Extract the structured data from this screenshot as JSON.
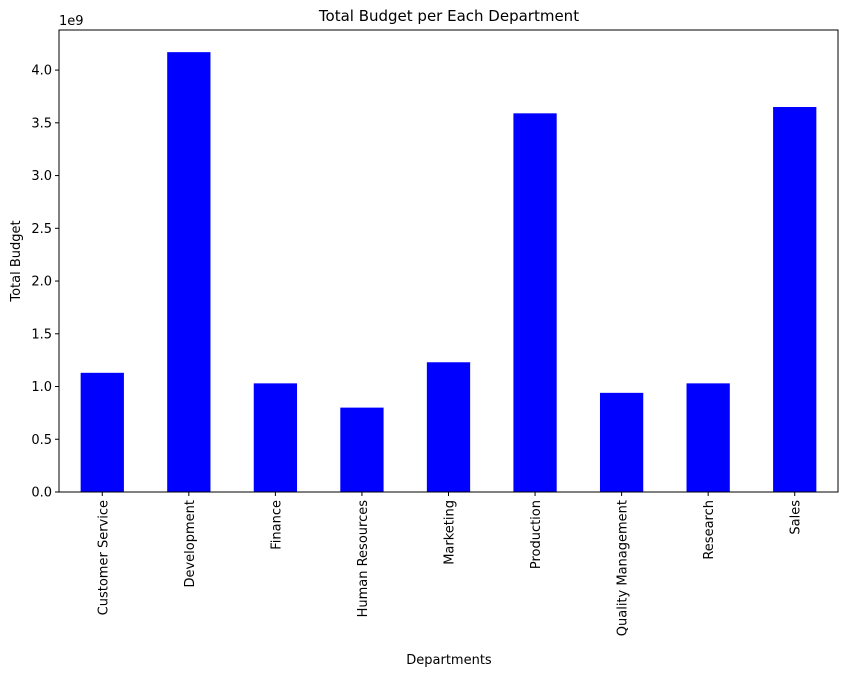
{
  "chart_data": {
    "type": "bar",
    "title": "Total Budget per Each Department",
    "xlabel": "Departments",
    "ylabel": "Total Budget",
    "offset_label": "1e9",
    "categories": [
      "Customer Service",
      "Development",
      "Finance",
      "Human Resources",
      "Marketing",
      "Production",
      "Quality Management",
      "Research",
      "Sales"
    ],
    "series": [
      {
        "values": [
          1.13,
          4.17,
          1.03,
          0.8,
          1.23,
          3.59,
          0.94,
          1.03,
          3.65
        ]
      }
    ],
    "yticks": [
      "0.0",
      "0.5",
      "1.0",
      "1.5",
      "2.0",
      "2.5",
      "3.0",
      "3.5",
      "4.0"
    ],
    "ylim": [
      0,
      4.38
    ],
    "bar_color": "#0000ff",
    "grid": false,
    "legend": false
  }
}
